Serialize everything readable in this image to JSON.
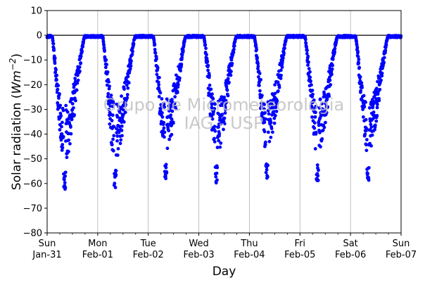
{
  "chart_data": {
    "type": "scatter",
    "title": "",
    "xlabel": "Day",
    "ylabel": "Solar radiation (W m^-2)",
    "ylabel_parts": {
      "prefix": "Solar radiation (",
      "unit_main": "Wm",
      "unit_exp": "−2",
      "suffix": ")"
    },
    "ylim": [
      -80,
      10
    ],
    "yticks": [
      10,
      0,
      -10,
      -20,
      -30,
      -40,
      -50,
      -60,
      -70,
      -80
    ],
    "ytick_labels": [
      "10",
      "0",
      "−10",
      "−20",
      "−30",
      "−40",
      "−50",
      "−60",
      "−70",
      "−80"
    ],
    "xlim": [
      "2016-01-31",
      "2016-02-07"
    ],
    "xticks": [
      {
        "date": "2016-01-31",
        "line1": "Sun",
        "line2": "Jan-31"
      },
      {
        "date": "2016-02-01",
        "line1": "Mon",
        "line2": "Feb-01"
      },
      {
        "date": "2016-02-02",
        "line1": "Tue",
        "line2": "Feb-02"
      },
      {
        "date": "2016-02-03",
        "line1": "Wed",
        "line2": "Feb-03"
      },
      {
        "date": "2016-02-04",
        "line1": "Thu",
        "line2": "Feb-04"
      },
      {
        "date": "2016-02-05",
        "line1": "Fri",
        "line2": "Feb-05"
      },
      {
        "date": "2016-02-06",
        "line1": "Sat",
        "line2": "Feb-06"
      },
      {
        "date": "2016-02-07",
        "line1": "Sun",
        "line2": "Feb-07"
      }
    ],
    "grid": "x-major",
    "hline_y": 0,
    "marker_color": "#0000ff",
    "watermark": [
      "Grupo de Micrometeorologia",
      "IAG - USP"
    ],
    "daily_minima": [
      {
        "date": "2016-01-31",
        "min": -63
      },
      {
        "date": "2016-02-01",
        "min": -62
      },
      {
        "date": "2016-02-02",
        "min": -58
      },
      {
        "date": "2016-02-03",
        "min": -60
      },
      {
        "date": "2016-02-04",
        "min": -58
      },
      {
        "date": "2016-02-05",
        "min": -59
      },
      {
        "date": "2016-02-06",
        "min": -59
      }
    ]
  }
}
